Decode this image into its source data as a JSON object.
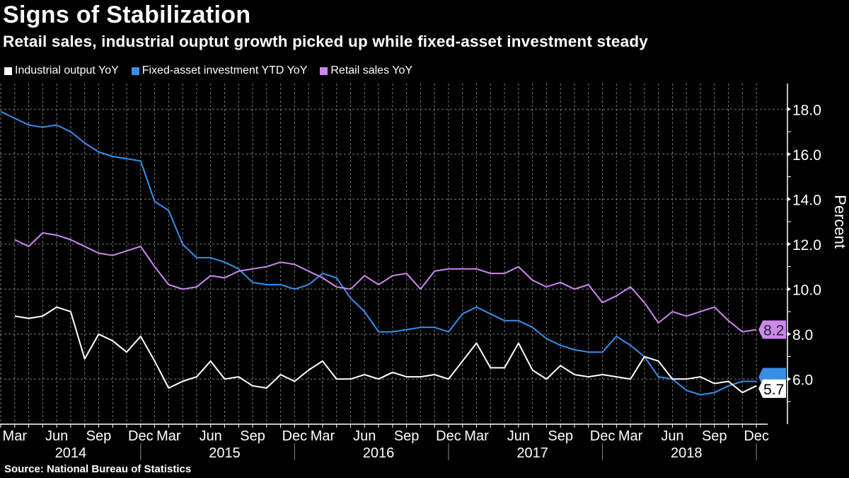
{
  "header": {
    "title": "Signs of Stabilization",
    "subtitle": "Retail sales, industrial ouptut growth picked up while fixed-asset investment steady"
  },
  "source": "Source: National Bureau of Statistics",
  "chart_data": {
    "type": "line",
    "title": "Signs of Stabilization",
    "subtitle": "Retail sales, industrial ouptut growth picked up while fixed-asset investment steady",
    "ylabel": "Percent",
    "ylim": [
      4.0,
      19.0
    ],
    "y_ticks": [
      "18.0",
      "16.0",
      "14.0",
      "12.0",
      "10.0",
      "8.0",
      "6.0"
    ],
    "grid": true,
    "legend_position": "top-left",
    "x": [
      "Feb 2014",
      "Mar 2014",
      "Apr 2014",
      "May 2014",
      "Jun 2014",
      "Jul 2014",
      "Aug 2014",
      "Sep 2014",
      "Oct 2014",
      "Nov 2014",
      "Dec 2014",
      "Feb 2015",
      "Mar 2015",
      "Apr 2015",
      "May 2015",
      "Jun 2015",
      "Jul 2015",
      "Aug 2015",
      "Sep 2015",
      "Oct 2015",
      "Nov 2015",
      "Dec 2015",
      "Feb 2016",
      "Mar 2016",
      "Apr 2016",
      "May 2016",
      "Jun 2016",
      "Jul 2016",
      "Aug 2016",
      "Sep 2016",
      "Oct 2016",
      "Nov 2016",
      "Dec 2016",
      "Feb 2017",
      "Mar 2017",
      "Apr 2017",
      "May 2017",
      "Jun 2017",
      "Jul 2017",
      "Aug 2017",
      "Sep 2017",
      "Oct 2017",
      "Nov 2017",
      "Dec 2017",
      "Feb 2018",
      "Mar 2018",
      "Apr 2018",
      "May 2018",
      "Jun 2018",
      "Jul 2018",
      "Aug 2018",
      "Sep 2018",
      "Oct 2018",
      "Nov 2018",
      "Dec 2018"
    ],
    "x_tick_labels": [
      {
        "label": "Mar",
        "period": "Mar 2014"
      },
      {
        "label": "Jun",
        "period": "Jun 2014"
      },
      {
        "label": "Sep",
        "period": "Sep 2014"
      },
      {
        "label": "Dec",
        "period": "Dec 2014"
      },
      {
        "label": "Mar",
        "period": "Mar 2015"
      },
      {
        "label": "Jun",
        "period": "Jun 2015"
      },
      {
        "label": "Sep",
        "period": "Sep 2015"
      },
      {
        "label": "Dec",
        "period": "Dec 2015"
      },
      {
        "label": "Mar",
        "period": "Mar 2016"
      },
      {
        "label": "Jun",
        "period": "Jun 2016"
      },
      {
        "label": "Sep",
        "period": "Sep 2016"
      },
      {
        "label": "Dec",
        "period": "Dec 2016"
      },
      {
        "label": "Mar",
        "period": "Mar 2017"
      },
      {
        "label": "Jun",
        "period": "Jun 2017"
      },
      {
        "label": "Sep",
        "period": "Sep 2017"
      },
      {
        "label": "Dec",
        "period": "Dec 2017"
      },
      {
        "label": "Mar",
        "period": "Mar 2018"
      },
      {
        "label": "Jun",
        "period": "Jun 2018"
      },
      {
        "label": "Sep",
        "period": "Sep 2018"
      },
      {
        "label": "Dec",
        "period": "Dec 2018"
      }
    ],
    "year_labels": [
      "2014",
      "2015",
      "2016",
      "2017",
      "2018"
    ],
    "series": [
      {
        "name": "Industrial output YoY",
        "color": "#ffffff",
        "last_label": "5.7",
        "values": [
          null,
          8.8,
          8.7,
          8.8,
          9.2,
          9.0,
          6.9,
          8.0,
          7.7,
          7.2,
          7.9,
          6.8,
          5.6,
          5.9,
          6.1,
          6.8,
          6.0,
          6.1,
          5.7,
          5.6,
          6.2,
          5.9,
          6.4,
          6.8,
          6.0,
          6.0,
          6.2,
          6.0,
          6.3,
          6.1,
          6.1,
          6.2,
          6.0,
          6.8,
          7.6,
          6.5,
          6.5,
          7.6,
          6.4,
          6.0,
          6.6,
          6.2,
          6.1,
          6.2,
          6.1,
          6.0,
          7.0,
          6.8,
          6.0,
          6.0,
          6.1,
          5.8,
          5.9,
          5.4,
          5.7
        ]
      },
      {
        "name": "Fixed-asset investment YTD YoY",
        "color": "#3a8ee6",
        "values": [
          17.9,
          17.6,
          17.3,
          17.2,
          17.3,
          17.0,
          16.5,
          16.1,
          15.9,
          15.8,
          15.7,
          13.9,
          13.5,
          12.0,
          11.4,
          11.4,
          11.2,
          10.9,
          10.3,
          10.2,
          10.2,
          10.0,
          10.2,
          10.7,
          10.5,
          9.6,
          9.0,
          8.1,
          8.1,
          8.2,
          8.3,
          8.3,
          8.1,
          8.9,
          9.2,
          8.9,
          8.6,
          8.6,
          8.3,
          7.8,
          7.5,
          7.3,
          7.2,
          7.2,
          7.9,
          7.5,
          7.0,
          6.1,
          6.0,
          5.5,
          5.3,
          5.4,
          5.7,
          5.9,
          5.9
        ]
      },
      {
        "name": "Retail sales YoY",
        "color": "#cc88ee",
        "last_label": "8.2",
        "values": [
          null,
          12.2,
          11.9,
          12.5,
          12.4,
          12.2,
          11.9,
          11.6,
          11.5,
          11.7,
          11.9,
          11.0,
          10.2,
          10.0,
          10.1,
          10.6,
          10.5,
          10.8,
          10.9,
          11.0,
          11.2,
          11.1,
          10.8,
          10.5,
          10.1,
          10.0,
          10.6,
          10.2,
          10.6,
          10.7,
          10.0,
          10.8,
          10.9,
          10.9,
          10.9,
          10.7,
          10.7,
          11.0,
          10.4,
          10.1,
          10.3,
          10.0,
          10.2,
          9.4,
          9.7,
          10.1,
          9.4,
          8.5,
          9.0,
          8.8,
          9.0,
          9.2,
          8.6,
          8.1,
          8.2
        ]
      }
    ]
  }
}
